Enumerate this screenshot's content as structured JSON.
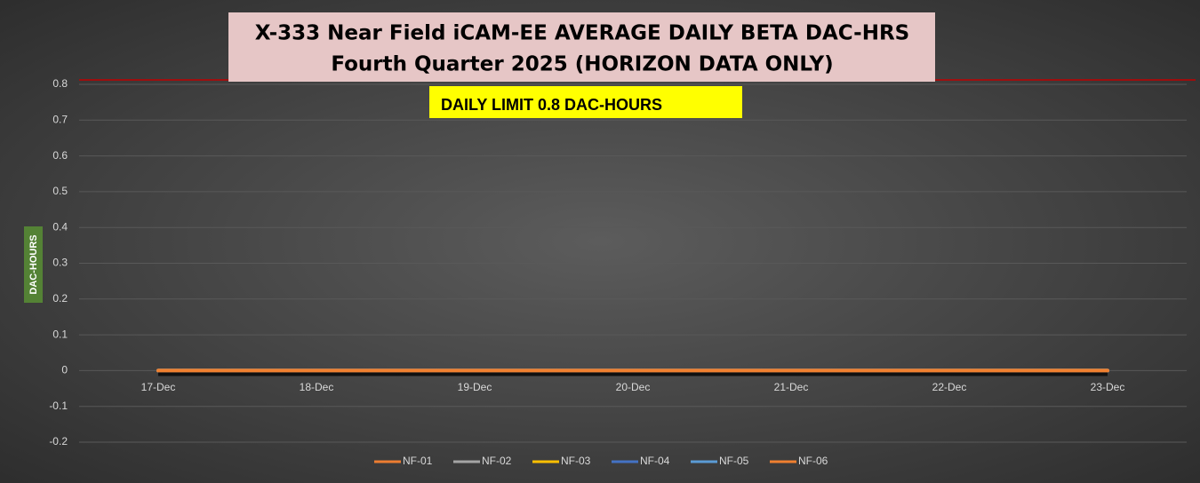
{
  "chart_data": {
    "type": "line",
    "title": "X-333 Near Field iCAM-EE AVERAGE DAILY BETA DAC-HRS",
    "subtitle": "Fourth Quarter 2025 (HORIZON DATA ONLY)",
    "annotation": "DAILY LIMIT 0.8 DAC-HOURS",
    "y_label": "DAC-HOURS",
    "limit_line": {
      "value": 0.8,
      "color": "#c00000"
    },
    "categories": [
      "17-Dec",
      "18-Dec",
      "19-Dec",
      "20-Dec",
      "21-Dec",
      "22-Dec",
      "23-Dec"
    ],
    "series": [
      {
        "name": "NF-01",
        "color": "#ed7d31",
        "values": [
          0,
          0,
          0,
          0,
          0,
          0,
          0
        ]
      },
      {
        "name": "NF-02",
        "color": "#a5a5a5",
        "values": [
          0,
          0,
          0,
          0,
          0,
          0,
          0
        ]
      },
      {
        "name": "NF-03",
        "color": "#ffc000",
        "values": [
          0,
          0,
          0,
          0,
          0,
          0,
          0
        ]
      },
      {
        "name": "NF-04",
        "color": "#4472c4",
        "values": [
          0,
          0,
          0,
          0,
          0,
          0,
          0
        ]
      },
      {
        "name": "NF-05",
        "color": "#5b9bd5",
        "values": [
          0,
          0,
          0,
          0,
          0,
          0,
          0
        ]
      },
      {
        "name": "NF-06",
        "color": "#f08030",
        "values": [
          0,
          0,
          0,
          0,
          0,
          0,
          0
        ]
      }
    ],
    "ylim": [
      -0.2,
      0.8
    ],
    "yticks": [
      -0.2,
      -0.1,
      0,
      0.1,
      0.2,
      0.3,
      0.4,
      0.5,
      0.6,
      0.7,
      0.8
    ],
    "grid": true
  }
}
